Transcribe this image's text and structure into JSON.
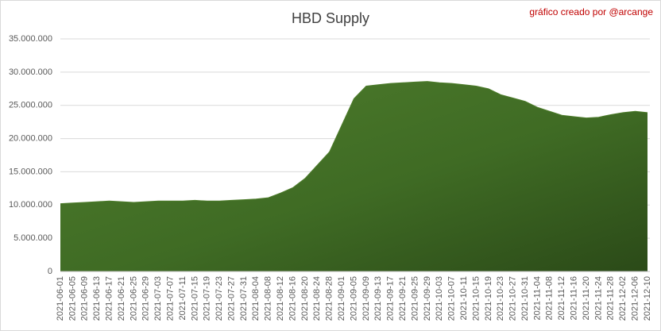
{
  "chart_data": {
    "type": "area",
    "title": "HBD Supply",
    "annotation": "gráfico creado por @arcange",
    "categories": [
      "2021-06-01",
      "2021-06-05",
      "2021-06-09",
      "2021-06-13",
      "2021-06-17",
      "2021-06-21",
      "2021-06-25",
      "2021-06-29",
      "2021-07-03",
      "2021-07-07",
      "2021-07-11",
      "2021-07-15",
      "2021-07-19",
      "2021-07-23",
      "2021-07-27",
      "2021-07-31",
      "2021-08-04",
      "2021-08-08",
      "2021-08-12",
      "2021-08-16",
      "2021-08-20",
      "2021-08-24",
      "2021-08-28",
      "2021-09-01",
      "2021-09-05",
      "2021-09-09",
      "2021-09-13",
      "2021-09-17",
      "2021-09-21",
      "2021-09-25",
      "2021-09-29",
      "2021-10-03",
      "2021-10-07",
      "2021-10-11",
      "2021-10-15",
      "2021-10-19",
      "2021-10-23",
      "2021-10-27",
      "2021-10-31",
      "2021-11-04",
      "2021-11-08",
      "2021-11-12",
      "2021-11-16",
      "2021-11-20",
      "2021-11-24",
      "2021-11-28",
      "2021-12-02",
      "2021-12-06",
      "2021-12-10"
    ],
    "values": [
      10200000,
      10300000,
      10400000,
      10500000,
      10600000,
      10500000,
      10400000,
      10500000,
      10600000,
      10600000,
      10600000,
      10700000,
      10600000,
      10600000,
      10700000,
      10800000,
      10900000,
      11100000,
      11800000,
      12600000,
      14000000,
      16000000,
      18000000,
      22000000,
      26000000,
      27900000,
      28100000,
      28300000,
      28400000,
      28500000,
      28600000,
      28400000,
      28300000,
      28100000,
      27900000,
      27500000,
      26600000,
      26100000,
      25600000,
      24700000,
      24100000,
      23500000,
      23300000,
      23100000,
      23200000,
      23600000,
      23900000,
      24100000,
      23900000
    ],
    "color": "#4e7d2c",
    "ylim": [
      0,
      35000000
    ],
    "yticks": [
      0,
      {
        "value": 5000000,
        "label": "5.000.000"
      },
      {
        "value": 10000000,
        "label": "10.000.000"
      },
      {
        "value": 15000000,
        "label": "15.000.000"
      },
      {
        "value": 20000000,
        "label": "20.000.000"
      },
      {
        "value": 25000000,
        "label": "25.000.000"
      },
      {
        "value": 30000000,
        "label": "30.000.000"
      },
      {
        "value": 35000000,
        "label": "35.000.000"
      }
    ],
    "grid": true
  }
}
